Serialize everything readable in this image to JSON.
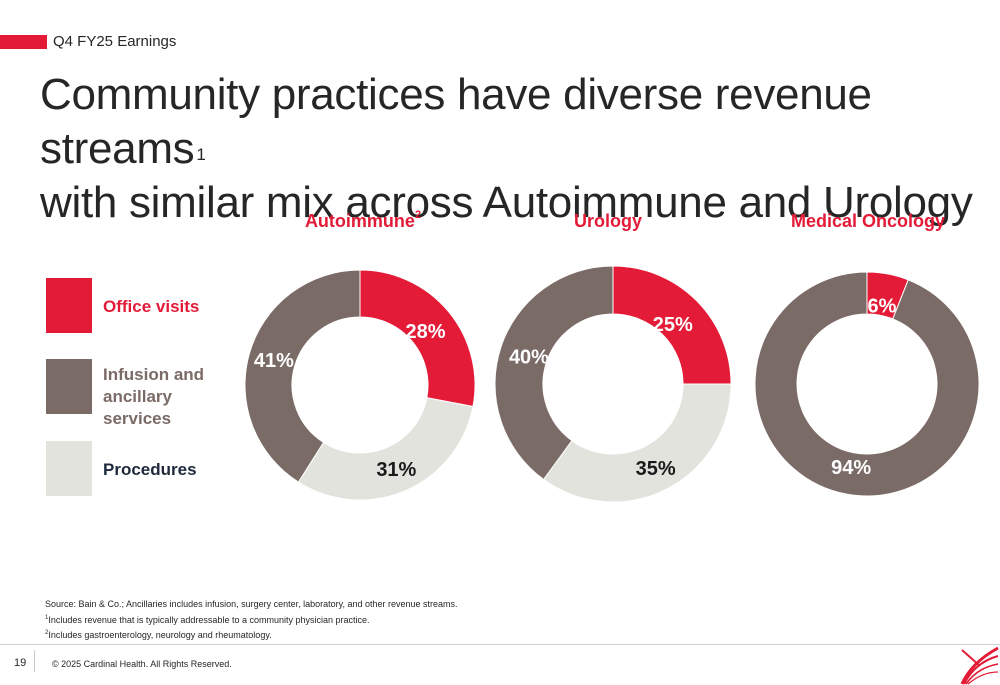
{
  "header": {
    "section_label": "Q4 FY25 Earnings",
    "title_line1": "Community practices have diverse revenue streams",
    "title_sup": "1",
    "title_line2": "with similar mix across Autoimmune and Urology"
  },
  "legend": [
    {
      "label": "Office visits",
      "color": "#e31b37",
      "text_color": "#e31b37"
    },
    {
      "label": "Infusion and ancillary services",
      "color": "#7a6b66",
      "text_color": "#7a6b66"
    },
    {
      "label": "Procedures",
      "color": "#e3e3de",
      "text_color": "#1e2a3c"
    }
  ],
  "chart_data": [
    {
      "type": "pie",
      "title": "Autoimmune",
      "title_sup": "2",
      "labels": [
        "Office visits",
        "Procedures",
        "Infusion and ancillary services"
      ],
      "values": [
        28,
        31,
        41
      ],
      "value_labels": [
        "28%",
        "31%",
        "41%"
      ]
    },
    {
      "type": "pie",
      "title": "Urology",
      "title_sup": "",
      "labels": [
        "Office visits",
        "Procedures",
        "Infusion and ancillary services"
      ],
      "values": [
        25,
        35,
        40
      ],
      "value_labels": [
        "25%",
        "35%",
        "40%"
      ]
    },
    {
      "type": "pie",
      "title": "Medical Oncology",
      "title_sup": "",
      "labels": [
        "Office visits",
        "Infusion and ancillary services"
      ],
      "values": [
        6,
        94
      ],
      "value_labels": [
        "6%",
        "94%"
      ]
    }
  ],
  "colors": {
    "Office visits": "#e31b37",
    "Infusion and ancillary services": "#7a6b66",
    "Procedures": "#e3e3de",
    "label_light": "#ffffff",
    "label_dark": "#1a1a1a"
  },
  "footnotes": {
    "source": "Source: Bain & Co.; Ancillaries includes infusion, surgery center, laboratory, and other revenue streams.",
    "note1_marker": "1",
    "note1": "Includes revenue that is typically addressable to a community physician practice.",
    "note2_marker": "2",
    "note2": "Includes gastroenterology, neurology and rheumatology."
  },
  "footer": {
    "page_number": "19",
    "copyright": "© 2025 Cardinal Health. All Rights Reserved."
  }
}
